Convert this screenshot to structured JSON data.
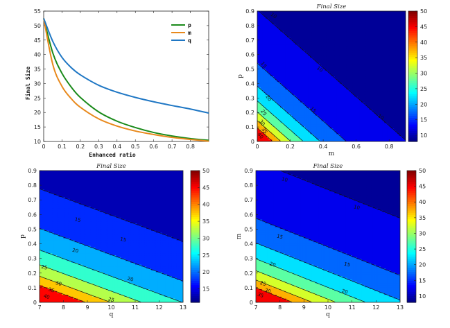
{
  "chart_data": [
    {
      "type": "line",
      "title": "",
      "xlabel": "Enhanced ratio",
      "ylabel": "Final Size",
      "xlim": [
        0,
        0.9
      ],
      "ylim": [
        10,
        55
      ],
      "xticks": [
        "0",
        "0.1",
        "0.2",
        "0.3",
        "0.4",
        "0.5",
        "0.6",
        "0.7",
        "0.8"
      ],
      "yticks": [
        "10",
        "15",
        "20",
        "25",
        "30",
        "35",
        "40",
        "45",
        "50",
        "55"
      ],
      "legend": "top-right",
      "series": [
        {
          "name": "p",
          "color": "#1a8a1a",
          "x": [
            0,
            0.05,
            0.1,
            0.15,
            0.2,
            0.3,
            0.4,
            0.5,
            0.6,
            0.7,
            0.8,
            0.9
          ],
          "y": [
            52.5,
            40.5,
            33.5,
            28.8,
            25.2,
            20.2,
            17.0,
            14.8,
            13.1,
            11.9,
            11.0,
            10.4
          ]
        },
        {
          "name": "m",
          "color": "#e8891c",
          "x": [
            0,
            0.05,
            0.1,
            0.15,
            0.2,
            0.3,
            0.4,
            0.5,
            0.6,
            0.7,
            0.8,
            0.9
          ],
          "y": [
            52.5,
            36.5,
            29.0,
            24.8,
            21.8,
            17.8,
            15.3,
            13.6,
            12.4,
            11.4,
            10.7,
            10.1
          ]
        },
        {
          "name": "q",
          "color": "#1f77c4",
          "x": [
            0,
            0.05,
            0.1,
            0.15,
            0.2,
            0.3,
            0.4,
            0.5,
            0.6,
            0.7,
            0.8,
            0.9
          ],
          "y": [
            52.5,
            44.5,
            39.0,
            35.5,
            33.0,
            29.4,
            27.0,
            25.2,
            23.7,
            22.4,
            21.2,
            19.8
          ]
        }
      ]
    },
    {
      "type": "heatmap",
      "title": "Final Size",
      "xlabel": "m",
      "ylabel": "p",
      "xlim": [
        0,
        0.9
      ],
      "ylim": [
        0,
        0.9
      ],
      "xticks": [
        "0",
        "0.2",
        "0.4",
        "0.6",
        "0.8"
      ],
      "yticks": [
        "0",
        "0.1",
        "0.2",
        "0.3",
        "0.4",
        "0.5",
        "0.6",
        "0.7",
        "0.8",
        "0.9"
      ],
      "colorbar_ticks": [
        "10",
        "15",
        "20",
        "25",
        "30",
        "35",
        "40",
        "45",
        "50"
      ],
      "colorbar_range": [
        8,
        50
      ],
      "contour_levels": [
        "10",
        "15",
        "20",
        "25",
        "30",
        "35",
        "40"
      ]
    },
    {
      "type": "heatmap",
      "title": "Final Size",
      "xlabel": "q",
      "ylabel": "p",
      "xlim": [
        7,
        13
      ],
      "ylim": [
        0,
        0.9
      ],
      "xticks": [
        "7",
        "8",
        "9",
        "10",
        "11",
        "12",
        "13"
      ],
      "yticks": [
        "0",
        "0.1",
        "0.2",
        "0.3",
        "0.4",
        "0.5",
        "0.6",
        "0.7",
        "0.8",
        "0.9"
      ],
      "colorbar_ticks": [
        "15",
        "20",
        "25",
        "30",
        "35",
        "40",
        "45",
        "50"
      ],
      "colorbar_range": [
        11,
        50
      ],
      "contour_levels": [
        "15",
        "20",
        "25",
        "30",
        "35",
        "40"
      ]
    },
    {
      "type": "heatmap",
      "title": "Final Size",
      "xlabel": "q",
      "ylabel": "m",
      "xlim": [
        7,
        13
      ],
      "ylim": [
        0,
        0.9
      ],
      "xticks": [
        "7",
        "8",
        "9",
        "10",
        "11",
        "12",
        "13"
      ],
      "yticks": [
        "0",
        "0.1",
        "0.2",
        "0.3",
        "0.4",
        "0.5",
        "0.6",
        "0.7",
        "0.8",
        "0.9"
      ],
      "colorbar_ticks": [
        "10",
        "15",
        "20",
        "25",
        "30",
        "35",
        "40",
        "45",
        "50"
      ],
      "colorbar_range": [
        8,
        50
      ],
      "contour_levels": [
        "10",
        "15",
        "20",
        "25",
        "30",
        "35",
        "40"
      ]
    }
  ]
}
